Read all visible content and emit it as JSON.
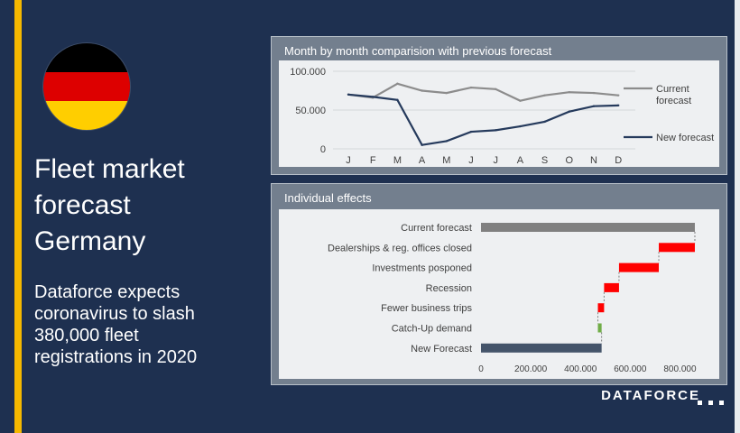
{
  "headline": [
    "Fleet market",
    "forecast",
    "Germany"
  ],
  "subtext": [
    "Dataforce expects",
    "coronavirus to slash",
    "380,000 fleet",
    "registrations in 2020"
  ],
  "logo": "DATAFORCE",
  "flag_colors": [
    "#000000",
    "#dd0000",
    "#ffce00"
  ],
  "colors": {
    "background": "#1e3050",
    "accent": "#f5b800",
    "current_line": "#8c8c8c",
    "new_line": "#253a5c",
    "decrease": "#ff0000",
    "increase": "#70ad47",
    "total_current": "#808080",
    "total_new": "#44546a"
  },
  "chart_data": [
    {
      "type": "line",
      "title": "Month by month comparision with previous forecast",
      "x": [
        "J",
        "F",
        "M",
        "A",
        "M",
        "J",
        "J",
        "A",
        "S",
        "O",
        "N",
        "D"
      ],
      "yticks": [
        "100.000",
        "50.000",
        "0"
      ],
      "ylim": [
        0,
        100000
      ],
      "legend_position": "right",
      "series": [
        {
          "name": "Current forecast",
          "name_lines": [
            "Current",
            "forecast"
          ],
          "values": [
            70000,
            66000,
            84000,
            75000,
            72000,
            79000,
            77000,
            62000,
            69000,
            73000,
            72000,
            69000
          ]
        },
        {
          "name": "New forecast",
          "name_lines": [
            "New forecast"
          ],
          "values": [
            70000,
            67000,
            63000,
            5000,
            10000,
            22000,
            24000,
            29000,
            35000,
            48000,
            55000,
            56000
          ]
        }
      ]
    },
    {
      "type": "bar",
      "subtype": "waterfall-horizontal",
      "title": "Individual effects",
      "categories": [
        "Current forecast",
        "Dealerships & reg. offices closed",
        "Investments posponed",
        "Recession",
        "Fewer business trips",
        "Catch-Up demand",
        "New Forecast"
      ],
      "bars": [
        {
          "start": 0,
          "end": 860000,
          "kind": "total_current"
        },
        {
          "start": 715000,
          "end": 860000,
          "kind": "decrease"
        },
        {
          "start": 555000,
          "end": 715000,
          "kind": "decrease"
        },
        {
          "start": 495000,
          "end": 555000,
          "kind": "decrease"
        },
        {
          "start": 470000,
          "end": 495000,
          "kind": "decrease"
        },
        {
          "start": 470000,
          "end": 485000,
          "kind": "increase"
        },
        {
          "start": 0,
          "end": 485000,
          "kind": "total_new"
        }
      ],
      "xticks": [
        {
          "value": 0,
          "label": "0"
        },
        {
          "value": 200000,
          "label": "200.000"
        },
        {
          "value": 400000,
          "label": "400.000"
        },
        {
          "value": 600000,
          "label": "600.000"
        },
        {
          "value": 800000,
          "label": "800.000"
        }
      ],
      "xlim": [
        0,
        900000
      ]
    }
  ]
}
